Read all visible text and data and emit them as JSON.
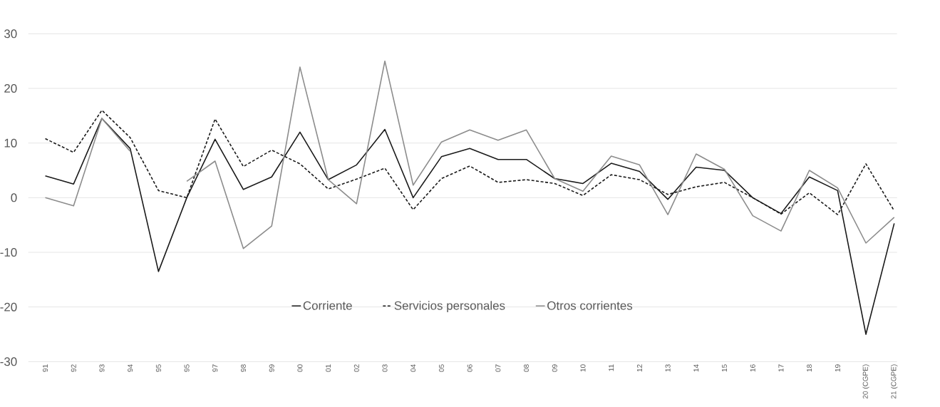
{
  "chart_data": {
    "type": "line",
    "categories": [
      "91",
      "92",
      "93",
      "94",
      "95",
      "95",
      "97",
      "98",
      "99",
      "00",
      "01",
      "02",
      "03",
      "04",
      "05",
      "06",
      "07",
      "08",
      "09",
      "10",
      "11",
      "12",
      "13",
      "14",
      "15",
      "16",
      "17",
      "18",
      "19",
      "20 (CGPE)",
      "21 (CGPE)"
    ],
    "series": [
      {
        "name": "Corriente",
        "color": "#1a1a1a",
        "line_style": "solid",
        "values": [
          4,
          2.5,
          14.5,
          9,
          -13.5,
          0,
          10.7,
          1.5,
          3.8,
          12,
          3.3,
          6,
          12.5,
          0,
          7.5,
          9,
          7,
          7,
          3.5,
          2.6,
          6.3,
          4.8,
          -0.3,
          5.6,
          5,
          0,
          -2.9,
          3.8,
          1.3,
          -25,
          -4.7
        ]
      },
      {
        "name": "Servicios personales",
        "color": "#1a1a1a",
        "line_style": "dashed",
        "values": [
          10.8,
          8.3,
          16,
          11,
          1.3,
          0,
          14.4,
          5.7,
          8.7,
          6.2,
          1.6,
          3.4,
          5.4,
          -2.2,
          3.5,
          5.8,
          2.8,
          3.3,
          2.6,
          0.4,
          4.2,
          3.3,
          0.6,
          2,
          2.8,
          0,
          -3,
          0.9,
          -3.1,
          6.2,
          -2.4
        ]
      },
      {
        "name": "Otros corrientes",
        "color": "#8c8c8c",
        "line_style": "solid",
        "values": [
          0,
          -1.5,
          14.5,
          8.5,
          null,
          3,
          6.7,
          -9.3,
          -5.2,
          23.9,
          3.3,
          -1.1,
          25,
          2.3,
          10.2,
          12.4,
          10.5,
          12.4,
          3.5,
          1.2,
          7.6,
          6,
          -3.1,
          8,
          5.2,
          -3.3,
          -6.1,
          5,
          1.8,
          -8.3,
          -3.6
        ]
      }
    ],
    "ylim": [
      -30,
      30
    ],
    "yticks": [
      -30,
      -20,
      -10,
      0,
      10,
      20,
      30
    ],
    "grid": "y",
    "legend": "bottom"
  }
}
